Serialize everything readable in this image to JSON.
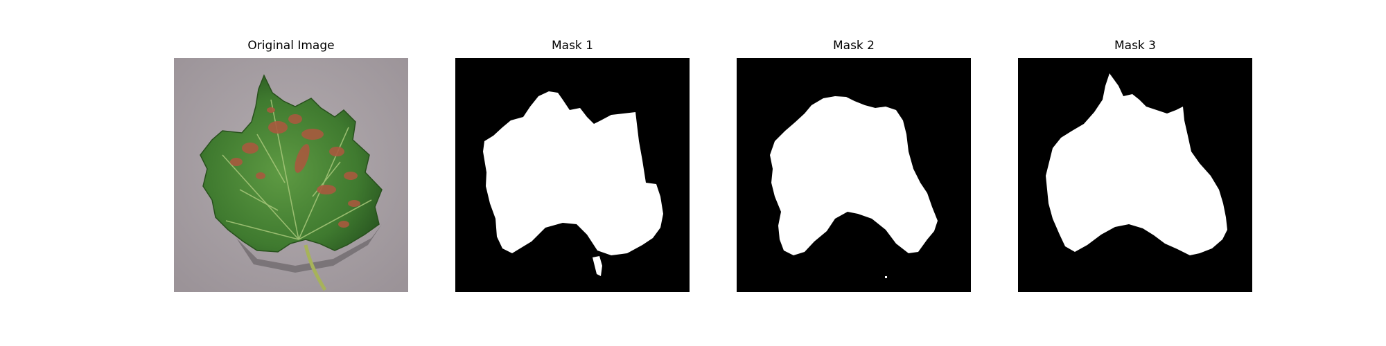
{
  "figure": {
    "panels": [
      {
        "title": "Original Image"
      },
      {
        "title": "Mask 1"
      },
      {
        "title": "Mask 2"
      },
      {
        "title": "Mask 3"
      }
    ]
  },
  "colors": {
    "mask_background": "#000000",
    "mask_foreground": "#ffffff",
    "photo_background": "#a69ea3",
    "leaf_green": "#4f8a3a",
    "leaf_dark_green": "#2f5e25",
    "lesion_rust": "#a85a3e"
  }
}
